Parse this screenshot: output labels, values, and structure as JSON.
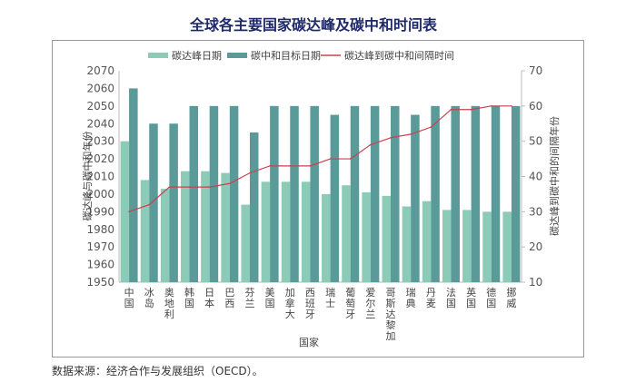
{
  "chart_data": {
    "type": "bar",
    "title": "全球各主要国家碳达峰及碳中和时间表",
    "xlabel": "国家",
    "ylabel": "碳达峰与碳中和年份",
    "y2label": "碳达峰到碳中和的间隔年份",
    "ylim": [
      1950,
      2070
    ],
    "y2lim": [
      10,
      70
    ],
    "yticks": [
      1950,
      1960,
      1970,
      1980,
      1990,
      2000,
      2010,
      2020,
      2030,
      2040,
      2050,
      2060,
      2070
    ],
    "y2ticks": [
      10,
      20,
      30,
      40,
      50,
      60,
      70
    ],
    "grid": false,
    "legend_position": "top",
    "categories": [
      "中国",
      "冰岛",
      "奥地利",
      "韩国",
      "日本",
      "巴西",
      "芬兰",
      "美国",
      "加拿大",
      "西班牙",
      "瑞士",
      "葡萄牙",
      "爱尔兰",
      "哥斯达黎加",
      "瑞典",
      "丹麦",
      "法国",
      "英国",
      "德国",
      "挪威"
    ],
    "series": [
      {
        "name": "碳达峰日期",
        "type": "bar",
        "axis": "left",
        "color": "#8ccbb8",
        "values": [
          2030,
          2008,
          2003,
          2013,
          2013,
          2012,
          1994,
          2007,
          2007,
          2007,
          2000,
          2005,
          2001,
          1999,
          1993,
          1996,
          1991,
          1991,
          1990,
          1990
        ]
      },
      {
        "name": "碳中和目标日期",
        "type": "bar",
        "axis": "left",
        "color": "#5a9a98",
        "values": [
          2060,
          2040,
          2040,
          2050,
          2050,
          2050,
          2035,
          2050,
          2050,
          2050,
          2045,
          2050,
          2050,
          2050,
          2045,
          2050,
          2050,
          2050,
          2050,
          2050
        ]
      },
      {
        "name": "碳达峰到碳中和间隔时间",
        "type": "line",
        "axis": "right",
        "color": "#c9414f",
        "values": [
          30,
          32,
          37,
          37,
          37,
          38,
          41,
          43,
          43,
          43,
          45,
          45,
          49,
          51,
          52,
          54,
          59,
          59,
          60,
          60
        ]
      }
    ]
  },
  "source": "数据来源：经济合作与发展组织（OECD）。",
  "colors": {
    "title": "#1f2a6b",
    "frame": "#999999",
    "axis": "#bbbbbb",
    "text": "#444444"
  }
}
